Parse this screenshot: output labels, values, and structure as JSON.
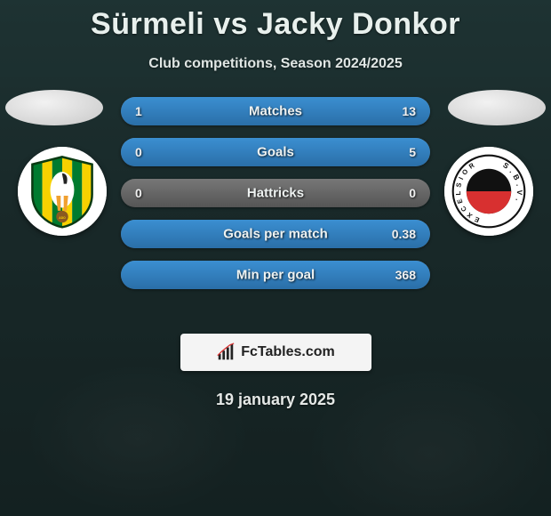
{
  "title": "Sürmeli vs Jacky Donkor",
  "subtitle": "Club competitions, Season 2024/2025",
  "date": "19 january 2025",
  "logo_text": "FcTables.com",
  "colors": {
    "bar_bg_top": "#777777",
    "bar_bg_bottom": "#555555",
    "bar_fill_top": "#3b8fd1",
    "bar_fill_bottom": "#2a6fa8",
    "text_primary": "#e8f0ed",
    "logo_bg": "#f4f4f4"
  },
  "bars": [
    {
      "label": "Matches",
      "left": "1",
      "right": "13",
      "left_pct": 7,
      "right_pct": 93
    },
    {
      "label": "Goals",
      "left": "0",
      "right": "5",
      "left_pct": 0,
      "right_pct": 100
    },
    {
      "label": "Hattricks",
      "left": "0",
      "right": "0",
      "left_pct": 0,
      "right_pct": 0
    },
    {
      "label": "Goals per match",
      "left": "",
      "right": "0.38",
      "left_pct": 0,
      "right_pct": 100
    },
    {
      "label": "Min per goal",
      "left": "",
      "right": "368",
      "left_pct": 0,
      "right_pct": 100
    }
  ],
  "left_club": {
    "name": "ADO Den Haag",
    "stripes": [
      "#007b2f",
      "#f7d100"
    ],
    "bird_color": "#ffffff"
  },
  "right_club": {
    "name": "S.B.V. Excelsior",
    "ring_text": "S.B.V. EXCELSIOR",
    "top_color": "#111111",
    "bottom_color": "#d83030",
    "ring_bg": "#ffffff"
  }
}
